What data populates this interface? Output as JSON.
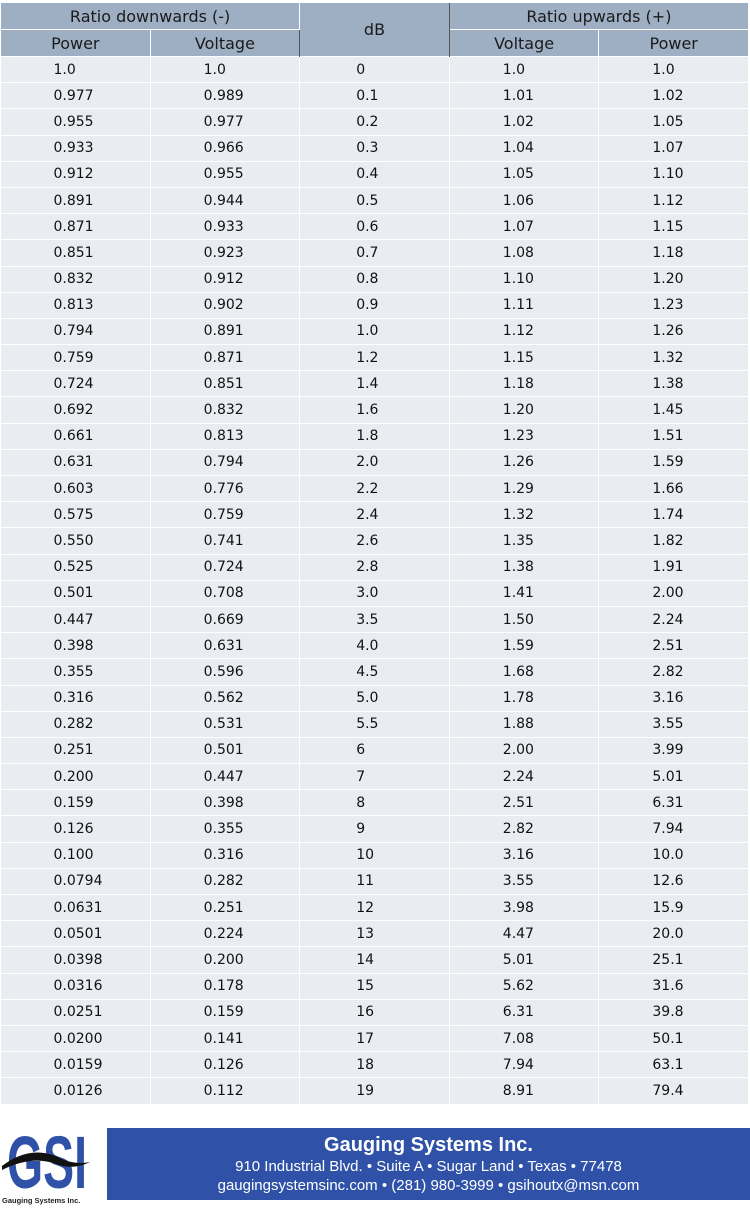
{
  "table": {
    "group_headers": {
      "down": "Ratio downwards (-)",
      "db": "dB",
      "up": "Ratio upwards (+)"
    },
    "sub_headers": {
      "down_power": "Power",
      "down_voltage": "Voltage",
      "up_voltage": "Voltage",
      "up_power": "Power"
    },
    "rows": [
      [
        "1.0",
        "1.0",
        "0",
        "1.0",
        "1.0"
      ],
      [
        "0.977",
        "0.989",
        "0.1",
        "1.01",
        "1.02"
      ],
      [
        "0.955",
        "0.977",
        "0.2",
        "1.02",
        "1.05"
      ],
      [
        "0.933",
        "0.966",
        "0.3",
        "1.04",
        "1.07"
      ],
      [
        "0.912",
        "0.955",
        "0.4",
        "1.05",
        "1.10"
      ],
      [
        "0.891",
        "0.944",
        "0.5",
        "1.06",
        "1.12"
      ],
      [
        "0.871",
        "0.933",
        "0.6",
        "1.07",
        "1.15"
      ],
      [
        "0.851",
        "0.923",
        "0.7",
        "1.08",
        "1.18"
      ],
      [
        "0.832",
        "0.912",
        "0.8",
        "1.10",
        "1.20"
      ],
      [
        "0.813",
        "0.902",
        "0.9",
        "1.11",
        "1.23"
      ],
      [
        "0.794",
        "0.891",
        "1.0",
        "1.12",
        "1.26"
      ],
      [
        "0.759",
        "0.871",
        "1.2",
        "1.15",
        "1.32"
      ],
      [
        "0.724",
        "0.851",
        "1.4",
        "1.18",
        "1.38"
      ],
      [
        "0.692",
        "0.832",
        "1.6",
        "1.20",
        "1.45"
      ],
      [
        "0.661",
        "0.813",
        "1.8",
        "1.23",
        "1.51"
      ],
      [
        "0.631",
        "0.794",
        "2.0",
        "1.26",
        "1.59"
      ],
      [
        "0.603",
        "0.776",
        "2.2",
        "1.29",
        "1.66"
      ],
      [
        "0.575",
        "0.759",
        "2.4",
        "1.32",
        "1.74"
      ],
      [
        "0.550",
        "0.741",
        "2.6",
        "1.35",
        "1.82"
      ],
      [
        "0.525",
        "0.724",
        "2.8",
        "1.38",
        "1.91"
      ],
      [
        "0.501",
        "0.708",
        "3.0",
        "1.41",
        "2.00"
      ],
      [
        "0.447",
        "0.669",
        "3.5",
        "1.50",
        "2.24"
      ],
      [
        "0.398",
        "0.631",
        "4.0",
        "1.59",
        "2.51"
      ],
      [
        "0.355",
        "0.596",
        "4.5",
        "1.68",
        "2.82"
      ],
      [
        "0.316",
        "0.562",
        "5.0",
        "1.78",
        "3.16"
      ],
      [
        "0.282",
        "0.531",
        "5.5",
        "1.88",
        "3.55"
      ],
      [
        "0.251",
        "0.501",
        "6",
        "2.00",
        "3.99"
      ],
      [
        "0.200",
        "0.447",
        "7",
        "2.24",
        "5.01"
      ],
      [
        "0.159",
        "0.398",
        "8",
        "2.51",
        "6.31"
      ],
      [
        "0.126",
        "0.355",
        "9",
        "2.82",
        "7.94"
      ],
      [
        "0.100",
        "0.316",
        "10",
        "3.16",
        "10.0"
      ],
      [
        "0.0794",
        "0.282",
        "11",
        "3.55",
        "12.6"
      ],
      [
        "0.0631",
        "0.251",
        "12",
        "3.98",
        "15.9"
      ],
      [
        "0.0501",
        "0.224",
        "13",
        "4.47",
        "20.0"
      ],
      [
        "0.0398",
        "0.200",
        "14",
        "5.01",
        "25.1"
      ],
      [
        "0.0316",
        "0.178",
        "15",
        "5.62",
        "31.6"
      ],
      [
        "0.0251",
        "0.159",
        "16",
        "6.31",
        "39.8"
      ],
      [
        "0.0200",
        "0.141",
        "17",
        "7.08",
        "50.1"
      ],
      [
        "0.0159",
        "0.126",
        "18",
        "7.94",
        "63.1"
      ],
      [
        "0.0126",
        "0.112",
        "19",
        "8.91",
        "79.4"
      ]
    ]
  },
  "logo": {
    "letters": "GSI",
    "caption": "Gauging Systems Inc."
  },
  "footer": {
    "company": "Gauging Systems Inc.",
    "address": "910 Industrial Blvd. • Suite A • Sugar Land • Texas • 77478",
    "contact": "gaugingsystemsinc.com • (281) 980-3999 • gsihoutx@msn.com"
  },
  "colors": {
    "header_bg": "#9eafc4",
    "row_bg": "#e9edf2",
    "footer_bg": "#2f52a8",
    "logo_blue": "#2f52a8"
  }
}
